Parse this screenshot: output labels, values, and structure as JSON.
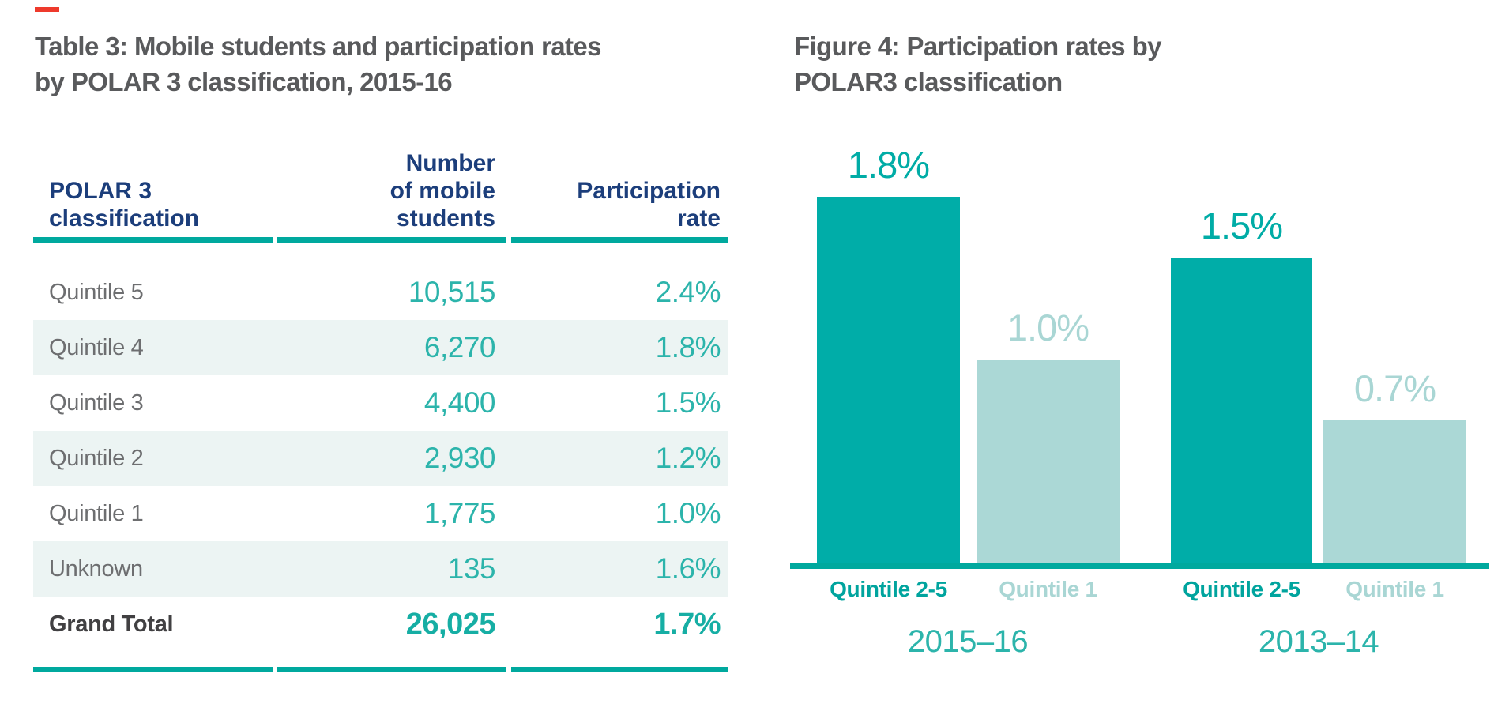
{
  "colors": {
    "accent_red": "#ee3a2c",
    "teal_dark": "#00ada8",
    "teal_light": "#abd8d6",
    "teal_rule": "#00a99e",
    "teal_value_text": "#2cb4ab",
    "navy_header": "#1c3e7b",
    "title_gray": "#595a5c",
    "row_label_gray": "#6d6e70",
    "total_label_gray": "#414042",
    "row_stripe": "#ecf4f3"
  },
  "table": {
    "title": "Table 3: Mobile students and participation rates\nby POLAR 3 classification, 2015-16",
    "headers": {
      "classification": "POLAR 3\nclassification",
      "students": "Number\nof mobile\nstudents",
      "rate": "Participation\nrate"
    },
    "rows": [
      {
        "classification": "Quintile 5",
        "students": "10,515",
        "rate": "2.4%"
      },
      {
        "classification": "Quintile 4",
        "students": "6,270",
        "rate": "1.8%"
      },
      {
        "classification": "Quintile 3",
        "students": "4,400",
        "rate": "1.5%"
      },
      {
        "classification": "Quintile 2",
        "students": "2,930",
        "rate": "1.2%"
      },
      {
        "classification": "Quintile 1",
        "students": "1,775",
        "rate": "1.0%"
      },
      {
        "classification": "Unknown",
        "students": "135",
        "rate": "1.6%"
      }
    ],
    "total": {
      "classification": "Grand Total",
      "students": "26,025",
      "rate": "1.7%"
    }
  },
  "figure": {
    "title": "Figure 4: Participation rates by\nPOLAR3 classification"
  },
  "chart_data": {
    "type": "bar",
    "title": "Figure 4: Participation rates by POLAR3 classification",
    "unit": "%",
    "ylim": [
      0,
      2.0
    ],
    "grid": false,
    "legend": false,
    "value_labels": true,
    "groups": [
      {
        "label": "2015–16",
        "bars": [
          {
            "category": "Quintile 2-5",
            "value": 1.8,
            "display": "1.8%",
            "shade": "dark"
          },
          {
            "category": "Quintile 1",
            "value": 1.0,
            "display": "1.0%",
            "shade": "light"
          }
        ]
      },
      {
        "label": "2013–14",
        "bars": [
          {
            "category": "Quintile 2-5",
            "value": 1.5,
            "display": "1.5%",
            "shade": "dark"
          },
          {
            "category": "Quintile 1",
            "value": 0.7,
            "display": "0.7%",
            "shade": "light"
          }
        ]
      }
    ]
  }
}
